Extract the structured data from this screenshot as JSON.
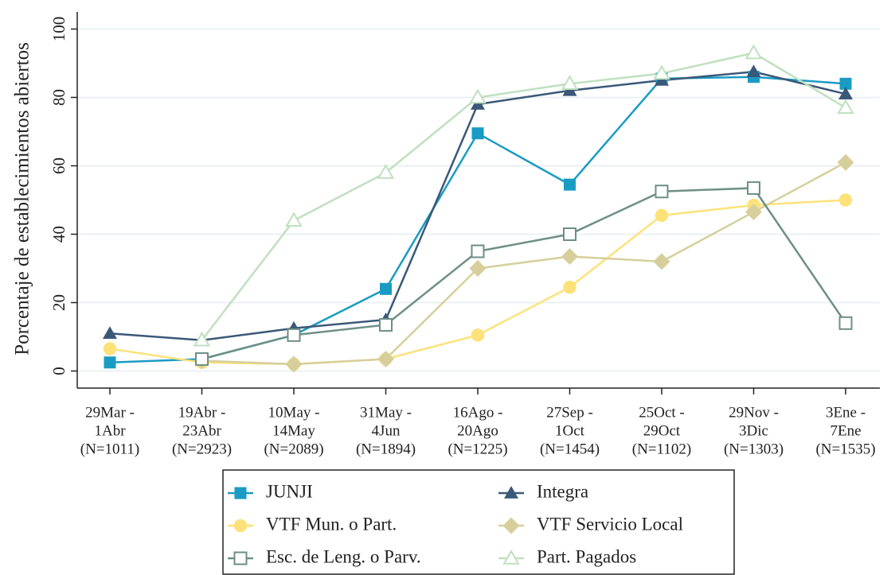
{
  "chart_data": {
    "type": "line",
    "ylabel": "Porcentaje de establecimientos abiertos",
    "categories": [
      [
        "29Mar -",
        "1Abr",
        "(N=1011)"
      ],
      [
        "19Abr -",
        "23Abr",
        "(N=2923)"
      ],
      [
        "10May -",
        "14May",
        "(N=2089)"
      ],
      [
        "31May -",
        "4Jun",
        "(N=1894)"
      ],
      [
        "16Ago -",
        "20Ago",
        "(N=1225)"
      ],
      [
        "27Sep -",
        "1Oct",
        "(N=1454)"
      ],
      [
        "25Oct -",
        "29Oct",
        "(N=1102)"
      ],
      [
        "29Nov -",
        "3Dic",
        "(N=1303)"
      ],
      [
        "3Ene -",
        "7Ene",
        "(N=1535)"
      ]
    ],
    "series": [
      {
        "name": "JUNJI",
        "color": "#1a9bc4",
        "marker": "square",
        "values": [
          2.5,
          3.5,
          10.5,
          24,
          69.5,
          54.5,
          85.5,
          86,
          84
        ]
      },
      {
        "name": "Integra",
        "color": "#3b5878",
        "marker": "triangle",
        "values": [
          11,
          9,
          12.5,
          15,
          78,
          82,
          85,
          87.5,
          81
        ]
      },
      {
        "name": "VTF Mun. o Part.",
        "color": "#fde27a",
        "marker": "circle",
        "values": [
          6.5,
          2.5,
          2,
          3.5,
          10.5,
          24.5,
          45.5,
          48.5,
          50
        ]
      },
      {
        "name": "VTF Servicio Local",
        "color": "#d6cf9b",
        "marker": "diamond",
        "values": [
          null,
          3,
          2,
          3.5,
          30,
          33.5,
          32,
          46.5,
          61
        ]
      },
      {
        "name": "Esc. de Leng. o Parv.",
        "color": "#6e8f86",
        "marker": "square-open",
        "values": [
          null,
          3.5,
          10.5,
          13.5,
          35,
          40,
          52.5,
          53.5,
          14
        ]
      },
      {
        "name": "Part. Pagados",
        "color": "#bfe0bf",
        "marker": "triangle-open",
        "values": [
          null,
          9,
          44,
          58,
          80,
          84,
          87,
          93,
          77
        ]
      }
    ],
    "ylim": [
      -5,
      105
    ],
    "yticks": [
      0,
      20,
      40,
      60,
      80,
      100
    ],
    "grid": true
  }
}
